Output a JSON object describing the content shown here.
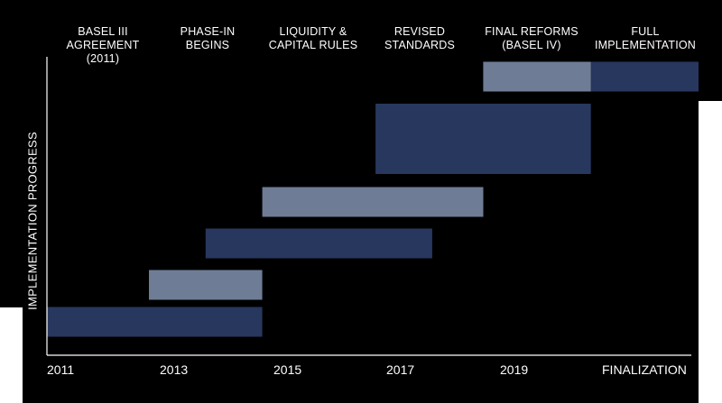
{
  "chart_data": {
    "type": "gantt",
    "ylabel": "IMPLEMENTATION PROGRESS",
    "xlabel": "",
    "x_ticks": [
      "2011",
      "2013",
      "2015",
      "2017",
      "2019",
      "FINALIZATION"
    ],
    "xlim": [
      2011,
      2022.5
    ],
    "phases": [
      {
        "label": [
          "BASEL III",
          "AGREEMENT",
          "(2011)"
        ]
      },
      {
        "label": [
          "PHASE-IN",
          "BEGINS"
        ]
      },
      {
        "label": [
          "LIQUIDITY &",
          "CAPITAL RULES"
        ]
      },
      {
        "label": [
          "REVISED",
          "STANDARDS"
        ]
      },
      {
        "label": [
          "FINAL REFORMS",
          "(BASEL IV)"
        ]
      },
      {
        "label": [
          "FULL",
          "IMPLEMENTATION"
        ]
      }
    ],
    "bars": [
      {
        "start": 2011.0,
        "end": 2014.8,
        "level": 1,
        "shade": "dark"
      },
      {
        "start": 2012.8,
        "end": 2014.8,
        "level": 2,
        "shade": "light"
      },
      {
        "start": 2013.8,
        "end": 2017.8,
        "level": 3,
        "shade": "dark"
      },
      {
        "start": 2014.8,
        "end": 2018.7,
        "level": 4,
        "shade": "light"
      },
      {
        "start": 2016.8,
        "end": 2020.6,
        "level": 5,
        "shade": "dark",
        "tall": true
      },
      {
        "start": 2018.7,
        "end": 2020.6,
        "level": 6,
        "shade": "light"
      },
      {
        "start": 2020.6,
        "end": 2022.5,
        "level": 6,
        "shade": "dark"
      }
    ],
    "colors": {
      "dark": "#27375e",
      "light": "#6e7d95",
      "axis": "#ffffff",
      "background": "#000000"
    }
  }
}
